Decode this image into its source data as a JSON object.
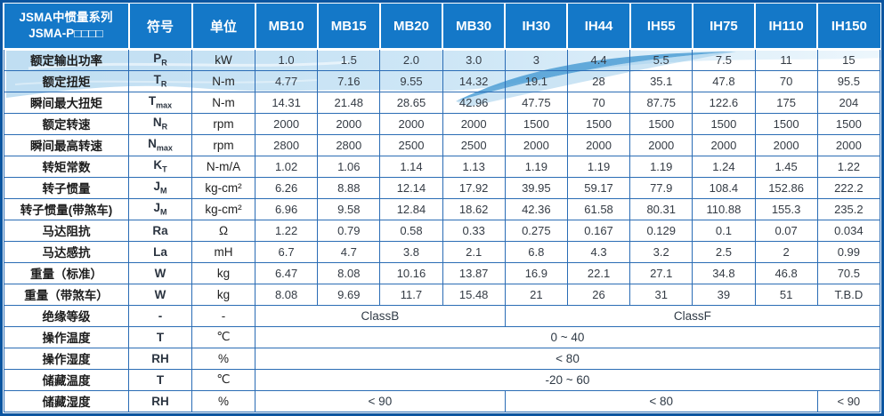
{
  "table": {
    "header": {
      "series_title_line1": "JSMA中惯量系列",
      "series_title_line2": "JSMA-P□□□□",
      "symbol_col": "符号",
      "unit_col": "单位",
      "models": [
        "MB10",
        "MB15",
        "MB20",
        "MB30",
        "IH30",
        "IH44",
        "IH55",
        "IH75",
        "IH110",
        "IH150"
      ]
    },
    "rows": [
      {
        "label": "额定输出功率",
        "symbol": "P",
        "sub": "R",
        "unit": "kW",
        "cells": [
          {
            "text": "1.0",
            "span": 1
          },
          {
            "text": "1.5",
            "span": 1
          },
          {
            "text": "2.0",
            "span": 1
          },
          {
            "text": "3.0",
            "span": 1
          },
          {
            "text": "3",
            "span": 1
          },
          {
            "text": "4.4",
            "span": 1
          },
          {
            "text": "5.5",
            "span": 1
          },
          {
            "text": "7.5",
            "span": 1
          },
          {
            "text": "11",
            "span": 1
          },
          {
            "text": "15",
            "span": 1
          }
        ]
      },
      {
        "label": "额定扭矩",
        "symbol": "T",
        "sub": "R",
        "unit": "N-m",
        "cells": [
          {
            "text": "4.77",
            "span": 1
          },
          {
            "text": "7.16",
            "span": 1
          },
          {
            "text": "9.55",
            "span": 1
          },
          {
            "text": "14.32",
            "span": 1
          },
          {
            "text": "19.1",
            "span": 1
          },
          {
            "text": "28",
            "span": 1
          },
          {
            "text": "35.1",
            "span": 1
          },
          {
            "text": "47.8",
            "span": 1
          },
          {
            "text": "70",
            "span": 1
          },
          {
            "text": "95.5",
            "span": 1
          }
        ]
      },
      {
        "label": "瞬间最大扭矩",
        "symbol": "T",
        "sub": "max",
        "unit": "N-m",
        "cells": [
          {
            "text": "14.31",
            "span": 1
          },
          {
            "text": "21.48",
            "span": 1
          },
          {
            "text": "28.65",
            "span": 1
          },
          {
            "text": "42.96",
            "span": 1
          },
          {
            "text": "47.75",
            "span": 1
          },
          {
            "text": "70",
            "span": 1
          },
          {
            "text": "87.75",
            "span": 1
          },
          {
            "text": "122.6",
            "span": 1
          },
          {
            "text": "175",
            "span": 1
          },
          {
            "text": "204",
            "span": 1
          }
        ]
      },
      {
        "label": "额定转速",
        "symbol": "N",
        "sub": "R",
        "unit": "rpm",
        "cells": [
          {
            "text": "2000",
            "span": 1
          },
          {
            "text": "2000",
            "span": 1
          },
          {
            "text": "2000",
            "span": 1
          },
          {
            "text": "2000",
            "span": 1
          },
          {
            "text": "1500",
            "span": 1
          },
          {
            "text": "1500",
            "span": 1
          },
          {
            "text": "1500",
            "span": 1
          },
          {
            "text": "1500",
            "span": 1
          },
          {
            "text": "1500",
            "span": 1
          },
          {
            "text": "1500",
            "span": 1
          }
        ]
      },
      {
        "label": "瞬间最高转速",
        "symbol": "N",
        "sub": "max",
        "unit": "rpm",
        "cells": [
          {
            "text": "2800",
            "span": 1
          },
          {
            "text": "2800",
            "span": 1
          },
          {
            "text": "2500",
            "span": 1
          },
          {
            "text": "2500",
            "span": 1
          },
          {
            "text": "2000",
            "span": 1
          },
          {
            "text": "2000",
            "span": 1
          },
          {
            "text": "2000",
            "span": 1
          },
          {
            "text": "2000",
            "span": 1
          },
          {
            "text": "2000",
            "span": 1
          },
          {
            "text": "2000",
            "span": 1
          }
        ]
      },
      {
        "label": "转矩常数",
        "symbol": "K",
        "sub": "T",
        "unit": "N-m/A",
        "cells": [
          {
            "text": "1.02",
            "span": 1
          },
          {
            "text": "1.06",
            "span": 1
          },
          {
            "text": "1.14",
            "span": 1
          },
          {
            "text": "1.13",
            "span": 1
          },
          {
            "text": "1.19",
            "span": 1
          },
          {
            "text": "1.19",
            "span": 1
          },
          {
            "text": "1.19",
            "span": 1
          },
          {
            "text": "1.24",
            "span": 1
          },
          {
            "text": "1.45",
            "span": 1
          },
          {
            "text": "1.22",
            "span": 1
          }
        ]
      },
      {
        "label": "转子惯量",
        "symbol": "J",
        "sub": "M",
        "unit": "kg-cm²",
        "cells": [
          {
            "text": "6.26",
            "span": 1
          },
          {
            "text": "8.88",
            "span": 1
          },
          {
            "text": "12.14",
            "span": 1
          },
          {
            "text": "17.92",
            "span": 1
          },
          {
            "text": "39.95",
            "span": 1
          },
          {
            "text": "59.17",
            "span": 1
          },
          {
            "text": "77.9",
            "span": 1
          },
          {
            "text": "108.4",
            "span": 1
          },
          {
            "text": "152.86",
            "span": 1
          },
          {
            "text": "222.2",
            "span": 1
          }
        ]
      },
      {
        "label": "转子惯量(带煞车)",
        "symbol": "J",
        "sub": "M",
        "unit": "kg-cm²",
        "cells": [
          {
            "text": "6.96",
            "span": 1
          },
          {
            "text": "9.58",
            "span": 1
          },
          {
            "text": "12.84",
            "span": 1
          },
          {
            "text": "18.62",
            "span": 1
          },
          {
            "text": "42.36",
            "span": 1
          },
          {
            "text": "61.58",
            "span": 1
          },
          {
            "text": "80.31",
            "span": 1
          },
          {
            "text": "110.88",
            "span": 1
          },
          {
            "text": "155.3",
            "span": 1
          },
          {
            "text": "235.2",
            "span": 1
          }
        ]
      },
      {
        "label": "马达阻抗",
        "symbol": "Ra",
        "sub": "",
        "unit": "Ω",
        "cells": [
          {
            "text": "1.22",
            "span": 1
          },
          {
            "text": "0.79",
            "span": 1
          },
          {
            "text": "0.58",
            "span": 1
          },
          {
            "text": "0.33",
            "span": 1
          },
          {
            "text": "0.275",
            "span": 1
          },
          {
            "text": "0.167",
            "span": 1
          },
          {
            "text": "0.129",
            "span": 1
          },
          {
            "text": "0.1",
            "span": 1
          },
          {
            "text": "0.07",
            "span": 1
          },
          {
            "text": "0.034",
            "span": 1
          }
        ]
      },
      {
        "label": "马达感抗",
        "symbol": "La",
        "sub": "",
        "unit": "mH",
        "cells": [
          {
            "text": "6.7",
            "span": 1
          },
          {
            "text": "4.7",
            "span": 1
          },
          {
            "text": "3.8",
            "span": 1
          },
          {
            "text": "2.1",
            "span": 1
          },
          {
            "text": "6.8",
            "span": 1
          },
          {
            "text": "4.3",
            "span": 1
          },
          {
            "text": "3.2",
            "span": 1
          },
          {
            "text": "2.5",
            "span": 1
          },
          {
            "text": "2",
            "span": 1
          },
          {
            "text": "0.99",
            "span": 1
          }
        ]
      },
      {
        "label": "重量（标准）",
        "symbol": "W",
        "sub": "",
        "unit": "kg",
        "cells": [
          {
            "text": "6.47",
            "span": 1
          },
          {
            "text": "8.08",
            "span": 1
          },
          {
            "text": "10.16",
            "span": 1
          },
          {
            "text": "13.87",
            "span": 1
          },
          {
            "text": "16.9",
            "span": 1
          },
          {
            "text": "22.1",
            "span": 1
          },
          {
            "text": "27.1",
            "span": 1
          },
          {
            "text": "34.8",
            "span": 1
          },
          {
            "text": "46.8",
            "span": 1
          },
          {
            "text": "70.5",
            "span": 1
          }
        ]
      },
      {
        "label": "重量（带煞车）",
        "symbol": "W",
        "sub": "",
        "unit": "kg",
        "cells": [
          {
            "text": "8.08",
            "span": 1
          },
          {
            "text": "9.69",
            "span": 1
          },
          {
            "text": "11.7",
            "span": 1
          },
          {
            "text": "15.48",
            "span": 1
          },
          {
            "text": "21",
            "span": 1
          },
          {
            "text": "26",
            "span": 1
          },
          {
            "text": "31",
            "span": 1
          },
          {
            "text": "39",
            "span": 1
          },
          {
            "text": "51",
            "span": 1
          },
          {
            "text": "T.B.D",
            "span": 1
          }
        ]
      },
      {
        "label": "绝缘等级",
        "symbol": "-",
        "sub": "",
        "unit": "-",
        "cells": [
          {
            "text": "ClassB",
            "span": 4
          },
          {
            "text": "ClassF",
            "span": 6
          }
        ]
      },
      {
        "label": "操作温度",
        "symbol": "T",
        "sub": "",
        "unit": "℃",
        "cells": [
          {
            "text": "0 ~ 40",
            "span": 10
          }
        ]
      },
      {
        "label": "操作湿度",
        "symbol": "RH",
        "sub": "",
        "unit": "%",
        "cells": [
          {
            "text": "< 80",
            "span": 10
          }
        ]
      },
      {
        "label": "储藏温度",
        "symbol": "T",
        "sub": "",
        "unit": "℃",
        "cells": [
          {
            "text": "-20 ~ 60",
            "span": 10
          }
        ]
      },
      {
        "label": "储藏湿度",
        "symbol": "RH",
        "sub": "",
        "unit": "%",
        "cells": [
          {
            "text": "< 90",
            "span": 4
          },
          {
            "text": "< 80",
            "span": 5
          },
          {
            "text": "< 90",
            "span": 1
          }
        ]
      }
    ]
  },
  "colors": {
    "header_bg": "#1478c8",
    "outer_border": "#0b55a0",
    "grid_border": "#2a6cb5",
    "value_text": "#343b44",
    "wave_light": "#c7e2f4",
    "wave_accent": "#4c9ed5"
  }
}
